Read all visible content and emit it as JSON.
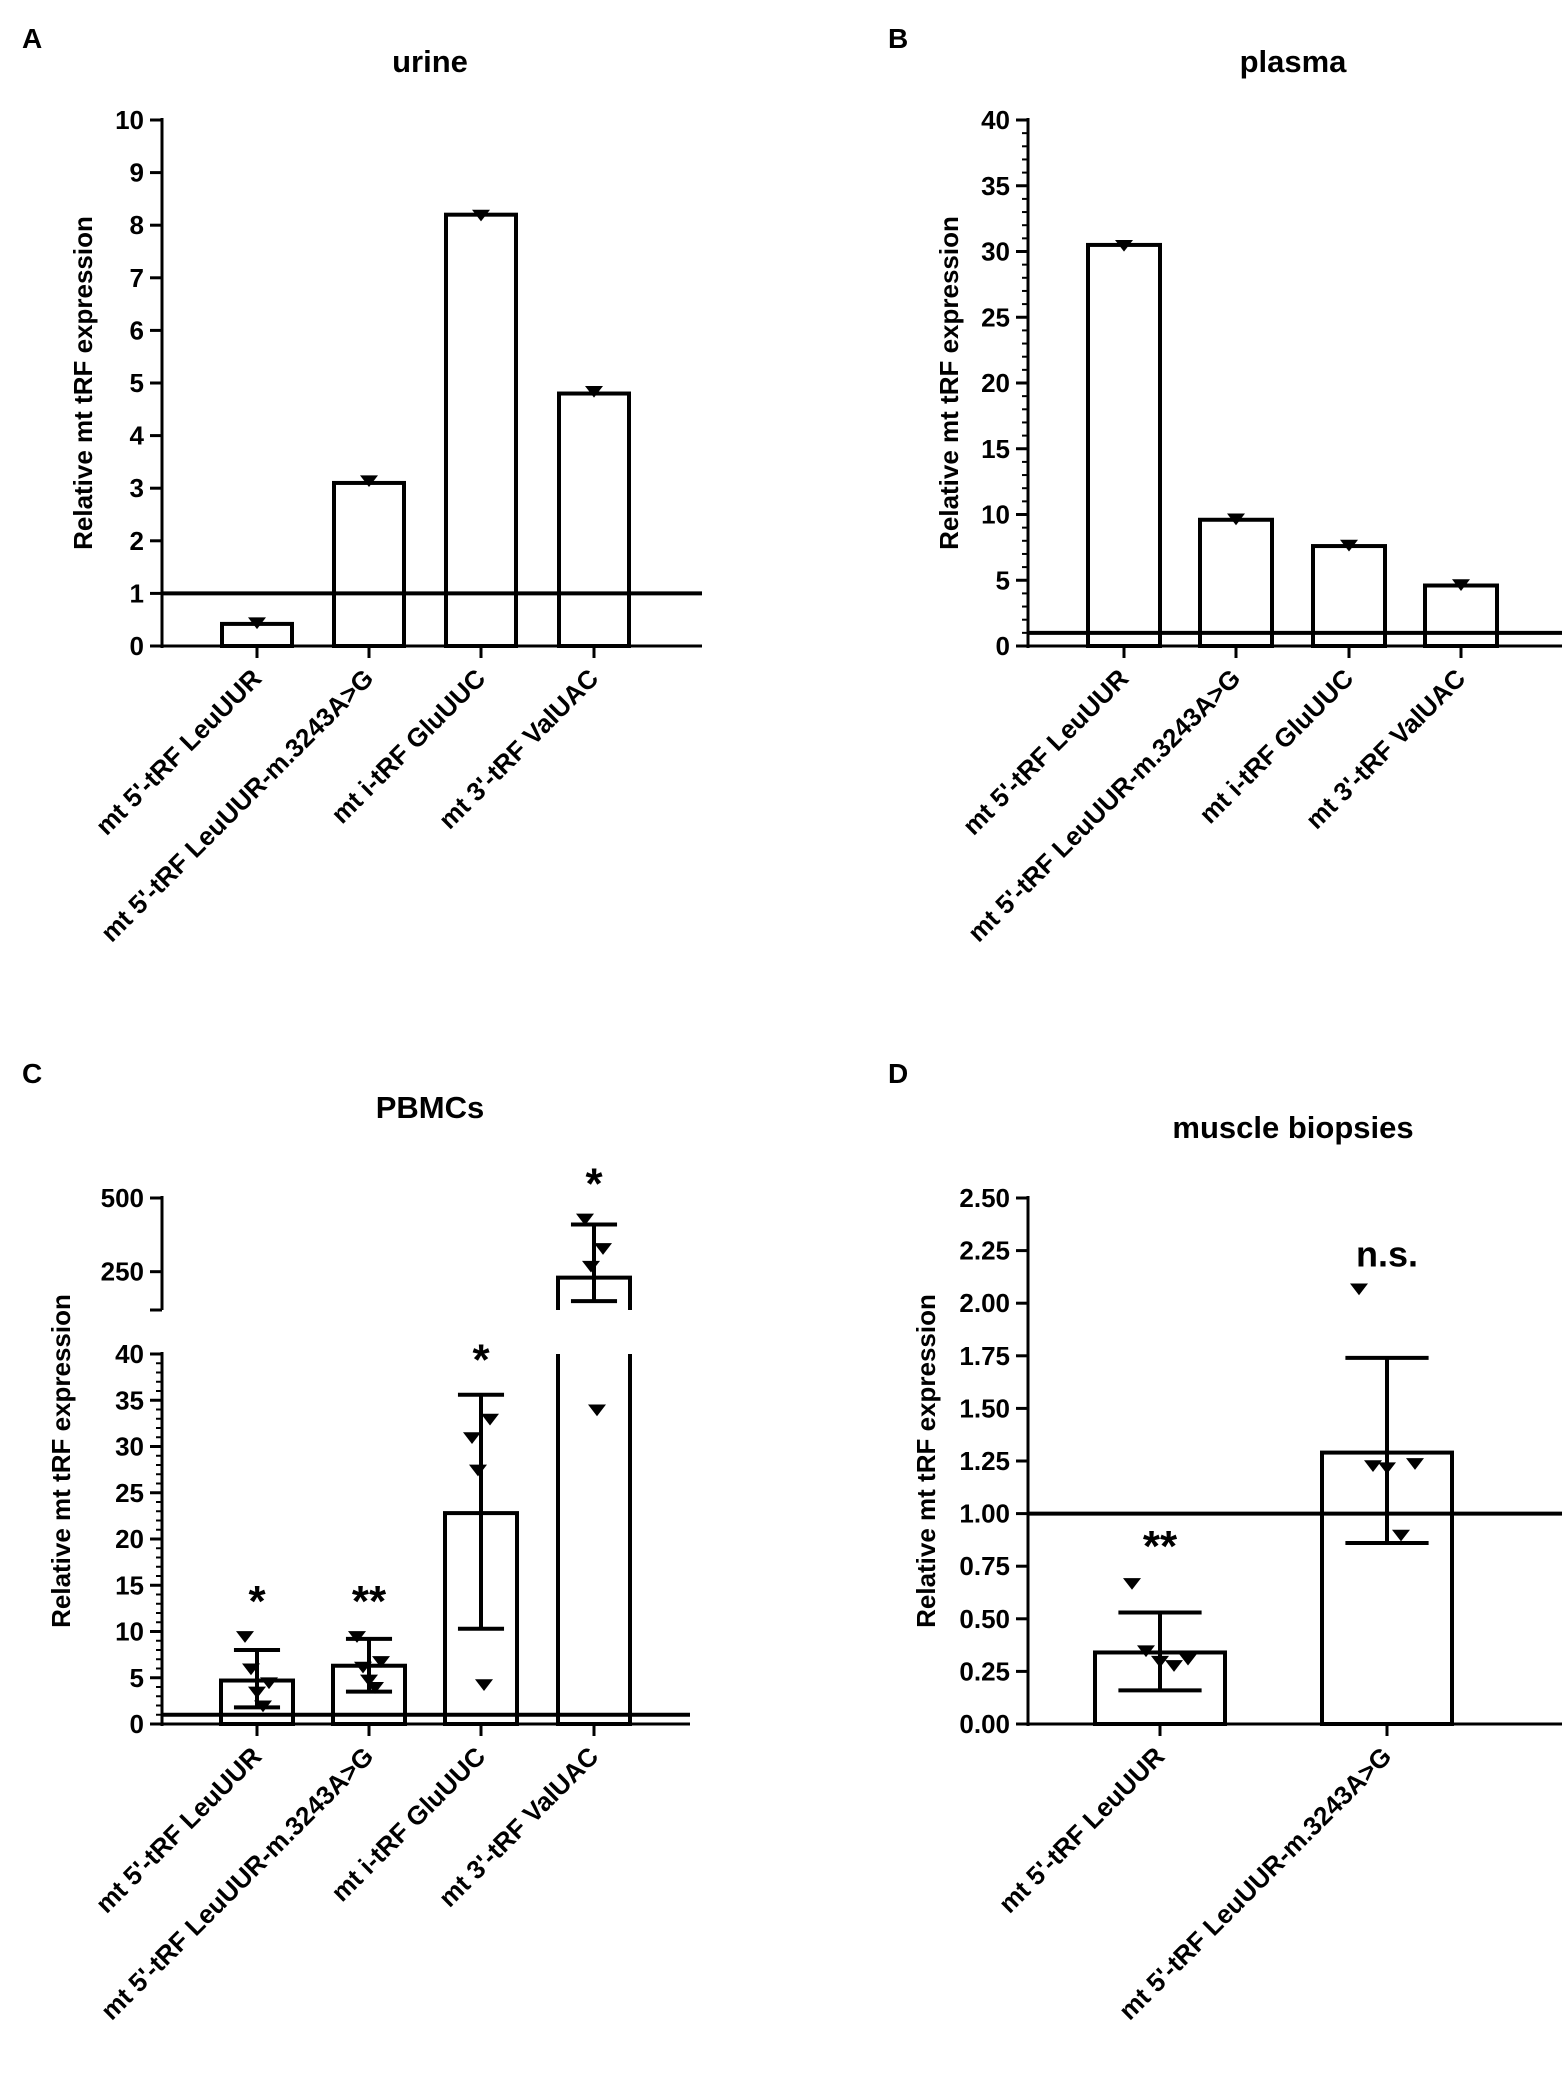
{
  "chart_data": [
    {
      "id": "A",
      "panel_label": "A",
      "type": "bar",
      "title": "urine",
      "ylabel": "Relative mt tRF expression",
      "ylim": [
        0,
        10
      ],
      "yticks": [
        "0",
        "1",
        "2",
        "3",
        "4",
        "5",
        "6",
        "7",
        "8",
        "9",
        "10"
      ],
      "categories": [
        "mt 5'-tRF LeuUUR",
        "mt 5'-tRF LeuUUR-m.3243A>G",
        "mt i-tRF GluUUC",
        "mt 3'-tRF ValUAC"
      ],
      "values": [
        0.42,
        3.1,
        8.2,
        4.8
      ],
      "points": [
        [
          0.45
        ],
        [
          3.15
        ],
        [
          8.2
        ],
        [
          4.85
        ]
      ],
      "reference_line": 1,
      "annotations": [
        "",
        "",
        "",
        ""
      ]
    },
    {
      "id": "B",
      "panel_label": "B",
      "type": "bar",
      "title": "plasma",
      "ylabel": "Relative mt tRF expression",
      "ylim": [
        0,
        40
      ],
      "yticks": [
        "0",
        "5",
        "10",
        "15",
        "20",
        "25",
        "30",
        "35",
        "40"
      ],
      "categories": [
        "mt 5'-tRF LeuUUR",
        "mt 5'-tRF LeuUUR-m.3243A>G",
        "mt i-tRF GluUUC",
        "mt 3'-tRF ValUAC"
      ],
      "values": [
        30.5,
        9.6,
        7.6,
        4.6
      ],
      "points": [
        [
          30.5
        ],
        [
          9.7
        ],
        [
          7.7
        ],
        [
          4.7
        ]
      ],
      "reference_line": 1,
      "annotations": [
        "",
        "",
        "",
        ""
      ]
    },
    {
      "id": "C",
      "panel_label": "C",
      "type": "bar",
      "title": "PBMCs",
      "ylabel": "Relative mt tRF expression",
      "ylim_lower": [
        0,
        40
      ],
      "ylim_upper": [
        120,
        500
      ],
      "yticks_lower": [
        "0",
        "5",
        "10",
        "15",
        "20",
        "25",
        "30",
        "35",
        "40"
      ],
      "yticks_upper": [
        "250",
        "500"
      ],
      "categories": [
        "mt 5'-tRF LeuUUR",
        "mt 5'-tRF LeuUUR-m.3243A>G",
        "mt i-tRF GluUUC",
        "mt 3'-tRF ValUAC"
      ],
      "values": [
        4.7,
        6.3,
        22.8,
        230
      ],
      "error": [
        [
          1.8,
          8.0
        ],
        [
          3.5,
          9.2
        ],
        [
          10.3,
          35.6
        ],
        [
          150,
          410
        ]
      ],
      "points": [
        [
          9.5,
          6.0,
          3.5,
          2.0,
          4.5
        ],
        [
          9.5,
          6.2,
          4.8,
          4.0,
          6.8
        ],
        [
          31.0,
          27.5,
          4.3,
          33.0
        ],
        [
          430,
          270,
          34.0,
          330
        ]
      ],
      "reference_line": 1,
      "annotations": [
        "*",
        "**",
        "*",
        "*"
      ]
    },
    {
      "id": "D",
      "panel_label": "D",
      "type": "bar",
      "title": "muscle biopsies",
      "ylabel": "Relative mt tRF expression",
      "ylim": [
        0,
        2.5
      ],
      "yticks": [
        "0.00",
        "0.25",
        "0.50",
        "0.75",
        "1.00",
        "1.25",
        "1.50",
        "1.75",
        "2.00",
        "2.25",
        "2.50"
      ],
      "categories": [
        "mt 5'-tRF LeuUUR",
        "mt 5'-tRF LeuUUR-m.3243A>G"
      ],
      "values": [
        0.34,
        1.29
      ],
      "error": [
        [
          0.16,
          0.53
        ],
        [
          0.86,
          1.74
        ]
      ],
      "points": [
        [
          0.67,
          0.35,
          0.3,
          0.28,
          0.31
        ],
        [
          2.07,
          1.23,
          1.22,
          0.9,
          1.24
        ]
      ],
      "reference_line": 1,
      "annotations": [
        "**",
        "n.s."
      ]
    }
  ]
}
